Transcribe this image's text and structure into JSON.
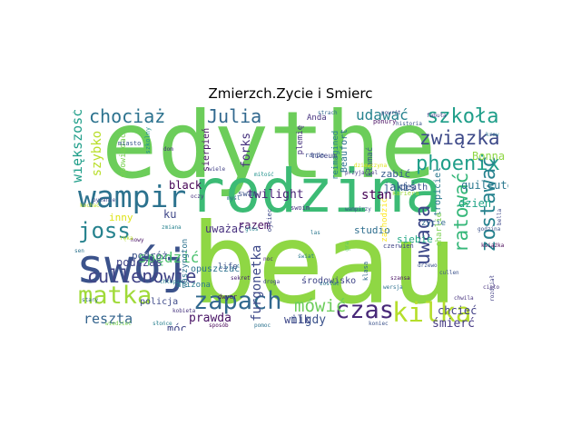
{
  "title": "Zmierzch.Zycie i Smierc",
  "words": [
    {
      "text": "beau",
      "color": "#8fd744"
    },
    {
      "text": "edythe",
      "color": "#6ccd5a"
    },
    {
      "text": "rodzina",
      "color": "#3cbb75"
    },
    {
      "text": "swój",
      "color": "#3b528b"
    },
    {
      "text": "wampir",
      "color": "#2c728e"
    },
    {
      "text": "zapach",
      "color": "#31688e"
    },
    {
      "text": "czas",
      "color": "#482878"
    },
    {
      "text": "kilka",
      "color": "#b5de2b"
    },
    {
      "text": "phoenix",
      "color": "#1f9e89"
    },
    {
      "text": "związka",
      "color": "#3e4a89"
    },
    {
      "text": "szkoła",
      "color": "#1f9e89"
    },
    {
      "text": "matka",
      "color": "#a0da39"
    },
    {
      "text": "joss",
      "color": "#26828e"
    },
    {
      "text": "chociaż",
      "color": "#2c728e"
    },
    {
      "text": "Julia",
      "color": "#31688e"
    },
    {
      "text": "zostawać",
      "color": "#26828e"
    },
    {
      "text": "ratować",
      "color": "#35b779"
    },
    {
      "text": "uwaga",
      "color": "#3e4989"
    },
    {
      "text": "cullenowie",
      "color": "#414487"
    },
    {
      "text": "mówić",
      "color": "#6ccd5a"
    },
    {
      "text": "udawać",
      "color": "#26828e"
    },
    {
      "text": "większość",
      "color": "#1f9e89"
    },
    {
      "text": "forks",
      "color": "#46327e"
    },
    {
      "text": "twilight",
      "color": "#482475"
    },
    {
      "text": "stan",
      "color": "#440154"
    },
    {
      "text": "furgonetka",
      "color": "#3e4989"
    },
    {
      "text": "spędzić",
      "color": "#4ac16d"
    },
    {
      "text": "razem",
      "color": "#471063"
    },
    {
      "text": "uważać",
      "color": "#46307e"
    },
    {
      "text": "reszta",
      "color": "#33638d"
    },
    {
      "text": "prawda",
      "color": "#471164"
    },
    {
      "text": "nigdy",
      "color": "#3b528b"
    },
    {
      "text": "chcieć",
      "color": "#424086"
    },
    {
      "text": "śmierć",
      "color": "#443983"
    },
    {
      "text": "dzień",
      "color": "#20a486"
    },
    {
      "text": "Bonna",
      "color": "#8fd744"
    },
    {
      "text": "quileute",
      "color": "#2a788e"
    },
    {
      "text": "black",
      "color": "#440154"
    },
    {
      "text": "podczas",
      "color": "#414487"
    },
    {
      "text": "szybko",
      "color": "#b8de29"
    },
    {
      "text": "ku",
      "color": "#3f4788"
    },
    {
      "text": "jakiś",
      "color": "#355f8d"
    },
    {
      "text": "zabić",
      "color": "#365c8d"
    },
    {
      "text": "studio",
      "color": "#2e6e8e"
    },
    {
      "text": "wilk",
      "color": "#3f4889"
    },
    {
      "text": "móc",
      "color": "#404688"
    },
    {
      "text": "inny",
      "color": "#dde318"
    },
    {
      "text": "plemię",
      "color": "#46327e"
    },
    {
      "text": "sierpień",
      "color": "#471365"
    },
    {
      "text": "Beaufort",
      "color": "#2d708e"
    },
    {
      "text": "opowiadać",
      "color": "#7ad151"
    },
    {
      "text": "reimagined",
      "color": "#277f8e"
    },
    {
      "text": "kłamać",
      "color": "#38598c"
    },
    {
      "text": "tropiciel",
      "color": "#2a788e"
    },
    {
      "text": "death",
      "color": "#3b528b"
    },
    {
      "text": "siebie",
      "color": "#22a884"
    },
    {
      "text": "życie",
      "color": "#31688e"
    },
    {
      "text": "zachodzić",
      "color": "#fde725"
    },
    {
      "text": "swan",
      "color": "#3b528b"
    },
    {
      "text": "liceum",
      "color": "#404588"
    },
    {
      "text": "charlie",
      "color": "#7ad151"
    },
    {
      "text": "kariera",
      "color": "#9fda3a"
    },
    {
      "text": "fabuła",
      "color": "#424186"
    },
    {
      "text": "Anda",
      "color": "#46327e"
    },
    {
      "text": "podróż",
      "color": "#3b528b"
    },
    {
      "text": "opuszczać",
      "color": "#2c728e"
    },
    {
      "text": "środowisko",
      "color": "#404688"
    },
    {
      "text": "dwyer",
      "color": "#471063"
    },
    {
      "text": "waszyngton",
      "color": "#2c728e"
    },
    {
      "text": "arizona",
      "color": "#2a788e"
    },
    {
      "text": "policja",
      "color": "#3e4a89"
    },
    {
      "text": "life",
      "color": "#3b528b"
    },
    {
      "text": "ojciec",
      "color": "#3e4989"
    },
    {
      "text": "miasto",
      "color": "#39568c"
    },
    {
      "text": "ponury",
      "color": "#470e61"
    },
    {
      "text": "randa",
      "color": "#3b528b"
    },
    {
      "text": "klasa",
      "color": "#31688e"
    },
    {
      "text": "swoim",
      "color": "#46327e"
    },
    {
      "text": "szkolny",
      "color": "#21918c"
    },
    {
      "text": "dom",
      "color": "#472c7a"
    },
    {
      "text": "czerwień",
      "color": "#414487"
    },
    {
      "text": "wampirzy",
      "color": "#3b528b"
    },
    {
      "text": "świat",
      "color": "#2a788e"
    },
    {
      "text": "głos",
      "color": "#26828e"
    },
    {
      "text": "noc",
      "color": "#482475"
    },
    {
      "text": "oczy",
      "color": "#46327e"
    },
    {
      "text": "przyjaciel",
      "color": "#443983"
    },
    {
      "text": "kochać",
      "color": "#bddf26"
    },
    {
      "text": "historia",
      "color": "#3b528b"
    },
    {
      "text": "krew",
      "color": "#2c728e"
    },
    {
      "text": "rozdział",
      "color": "#424086"
    },
    {
      "text": "chłopak",
      "color": "#25848e"
    },
    {
      "text": "pytanie",
      "color": "#3e4989"
    },
    {
      "text": "myśl",
      "color": "#31688e"
    },
    {
      "text": "nowy",
      "color": "#471063"
    },
    {
      "text": "gra",
      "color": "#5ec962"
    },
    {
      "text": "wersja",
      "color": "#2d708e"
    },
    {
      "text": "książka",
      "color": "#440154"
    },
    {
      "text": "kobieta",
      "color": "#46337e"
    },
    {
      "text": "słońce",
      "color": "#277f8e"
    },
    {
      "text": "drzewo",
      "color": "#3b528b"
    },
    {
      "text": "las",
      "color": "#2a788e"
    },
    {
      "text": "droga",
      "color": "#404688"
    },
    {
      "text": "sekret",
      "color": "#482173"
    },
    {
      "text": "zmiana",
      "color": "#26828e"
    },
    {
      "text": "ręka",
      "color": "#b5de2b"
    },
    {
      "text": "strach",
      "color": "#31688e"
    },
    {
      "text": "powrót",
      "color": "#3e4a89"
    },
    {
      "text": "godzina",
      "color": "#3b528b"
    },
    {
      "text": "ciało",
      "color": "#46327e"
    },
    {
      "text": "sen",
      "color": "#2c728e"
    },
    {
      "text": "wiele",
      "color": "#424086"
    },
    {
      "text": "miłość",
      "color": "#21918c"
    },
    {
      "text": "bella",
      "color": "#3e4989"
    },
    {
      "text": "cullen",
      "color": "#3b528b"
    },
    {
      "text": "szansa",
      "color": "#471063"
    },
    {
      "text": "zostać",
      "color": "#2a788e"
    },
    {
      "text": "wiedzieć",
      "color": "#7ad151"
    },
    {
      "text": "sposób",
      "color": "#440154"
    },
    {
      "text": "koniec",
      "color": "#3b528b"
    },
    {
      "text": "pomoc",
      "color": "#2c728e"
    },
    {
      "text": "chwila",
      "color": "#46327e"
    },
    {
      "text": "stary",
      "color": "#31688e"
    },
    {
      "text": "dziewczyna",
      "color": "#dde318"
    }
  ]
}
